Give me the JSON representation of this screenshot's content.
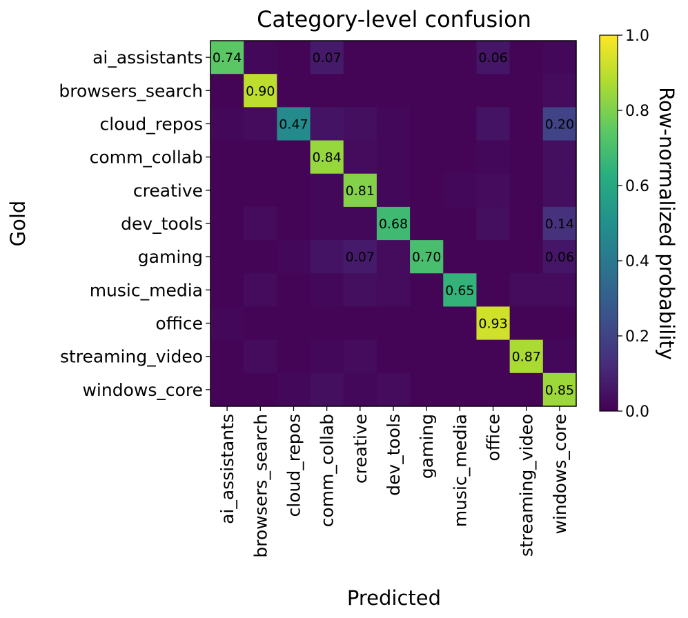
{
  "chart_data": {
    "type": "heatmap",
    "title": "Category-level confusion",
    "xlabel": "Predicted",
    "ylabel": "Gold",
    "colorbar_label": "Row-normalized probability",
    "colorbar_ticks": [
      "0.0",
      "0.2",
      "0.4",
      "0.6",
      "0.8",
      "1.0"
    ],
    "colorbar_tick_values": [
      0.0,
      0.2,
      0.4,
      0.6,
      0.8,
      1.0
    ],
    "vmin": 0.0,
    "vmax": 1.0,
    "colormap": "viridis",
    "rows": [
      "ai_assistants",
      "browsers_search",
      "cloud_repos",
      "comm_collab",
      "creative",
      "dev_tools",
      "gaming",
      "music_media",
      "office",
      "streaming_video",
      "windows_core"
    ],
    "cols": [
      "ai_assistants",
      "browsers_search",
      "cloud_repos",
      "comm_collab",
      "creative",
      "dev_tools",
      "gaming",
      "music_media",
      "office",
      "streaming_video",
      "windows_core"
    ],
    "values": [
      [
        0.74,
        0.02,
        0.01,
        0.07,
        0.01,
        0.01,
        0.01,
        0.01,
        0.06,
        0.01,
        0.02
      ],
      [
        0.01,
        0.9,
        0.01,
        0.01,
        0.01,
        0.01,
        0.01,
        0.01,
        0.01,
        0.01,
        0.03
      ],
      [
        0.02,
        0.03,
        0.47,
        0.05,
        0.04,
        0.02,
        0.01,
        0.01,
        0.05,
        0.01,
        0.2
      ],
      [
        0.01,
        0.01,
        0.01,
        0.84,
        0.03,
        0.02,
        0.01,
        0.01,
        0.02,
        0.01,
        0.04
      ],
      [
        0.01,
        0.01,
        0.01,
        0.02,
        0.81,
        0.02,
        0.01,
        0.02,
        0.03,
        0.01,
        0.04
      ],
      [
        0.01,
        0.03,
        0.01,
        0.02,
        0.02,
        0.68,
        0.01,
        0.01,
        0.04,
        0.01,
        0.14
      ],
      [
        0.01,
        0.01,
        0.02,
        0.05,
        0.07,
        0.03,
        0.7,
        0.01,
        0.01,
        0.01,
        0.06
      ],
      [
        0.01,
        0.03,
        0.01,
        0.02,
        0.04,
        0.03,
        0.01,
        0.65,
        0.01,
        0.03,
        0.03
      ],
      [
        0.02,
        0.01,
        0.01,
        0.01,
        0.01,
        0.01,
        0.01,
        0.01,
        0.93,
        0.01,
        0.01
      ],
      [
        0.01,
        0.03,
        0.01,
        0.02,
        0.03,
        0.01,
        0.01,
        0.01,
        0.01,
        0.87,
        0.02
      ],
      [
        0.01,
        0.01,
        0.02,
        0.04,
        0.02,
        0.03,
        0.01,
        0.01,
        0.01,
        0.01,
        0.85
      ]
    ],
    "annotations": [
      {
        "row": 0,
        "col": 0,
        "text": "0.74"
      },
      {
        "row": 0,
        "col": 3,
        "text": "0.07"
      },
      {
        "row": 0,
        "col": 8,
        "text": "0.06"
      },
      {
        "row": 1,
        "col": 1,
        "text": "0.90"
      },
      {
        "row": 2,
        "col": 2,
        "text": "0.47"
      },
      {
        "row": 2,
        "col": 10,
        "text": "0.20"
      },
      {
        "row": 3,
        "col": 3,
        "text": "0.84"
      },
      {
        "row": 4,
        "col": 4,
        "text": "0.81"
      },
      {
        "row": 5,
        "col": 5,
        "text": "0.68"
      },
      {
        "row": 5,
        "col": 10,
        "text": "0.14"
      },
      {
        "row": 6,
        "col": 4,
        "text": "0.07"
      },
      {
        "row": 6,
        "col": 6,
        "text": "0.70"
      },
      {
        "row": 6,
        "col": 10,
        "text": "0.06"
      },
      {
        "row": 7,
        "col": 7,
        "text": "0.65"
      },
      {
        "row": 8,
        "col": 8,
        "text": "0.93"
      },
      {
        "row": 9,
        "col": 9,
        "text": "0.87"
      },
      {
        "row": 10,
        "col": 10,
        "text": "0.85"
      }
    ]
  }
}
